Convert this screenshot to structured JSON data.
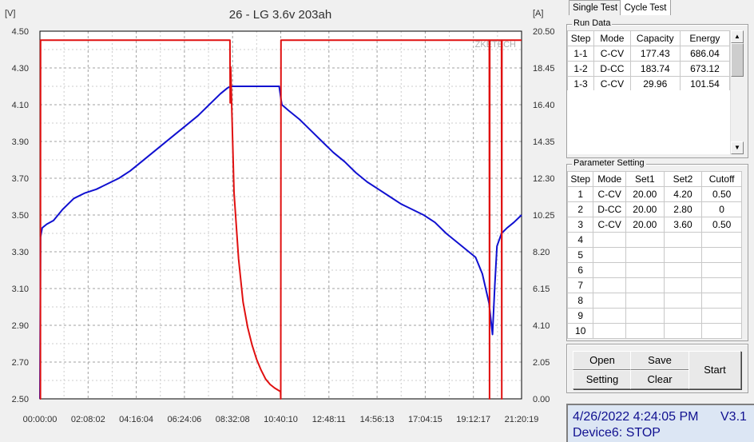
{
  "tabs": [
    "Single Test",
    "Cycle Test"
  ],
  "run_data": {
    "title": "Run Data",
    "headers": [
      "Step",
      "Mode",
      "Capacity",
      "Energy"
    ],
    "rows": [
      [
        "1-1",
        "C-CV",
        "177.43",
        "686.04"
      ],
      [
        "1-2",
        "D-CC",
        "183.74",
        "673.12"
      ],
      [
        "1-3",
        "C-CV",
        "29.96",
        "101.54"
      ]
    ]
  },
  "parameters": {
    "title": "Parameter Setting",
    "headers": [
      "Step",
      "Mode",
      "Set1",
      "Set2",
      "Cutoff"
    ],
    "rows": [
      [
        "1",
        "C-CV",
        "20.00",
        "4.20",
        "0.50"
      ],
      [
        "2",
        "D-CC",
        "20.00",
        "2.80",
        "0"
      ],
      [
        "3",
        "C-CV",
        "20.00",
        "3.60",
        "0.50"
      ],
      [
        "4",
        "",
        "",
        "",
        ""
      ],
      [
        "5",
        "",
        "",
        "",
        ""
      ],
      [
        "6",
        "",
        "",
        "",
        ""
      ],
      [
        "7",
        "",
        "",
        "",
        ""
      ],
      [
        "8",
        "",
        "",
        "",
        ""
      ],
      [
        "9",
        "",
        "",
        "",
        ""
      ],
      [
        "10",
        "",
        "",
        "",
        ""
      ]
    ]
  },
  "buttons": {
    "open": "Open",
    "save": "Save",
    "setting": "Setting",
    "clear": "Clear",
    "start": "Start"
  },
  "status": {
    "datetime": "4/26/2022 4:24:05 PM",
    "version": "V3.1",
    "device": "Device6: STOP"
  },
  "chart_data": {
    "type": "line",
    "title": "26 - LG 3.6v 203ah",
    "watermark": "ZKETECH",
    "y_left_unit": "[V]",
    "y_right_unit": "[A]",
    "y_left_ticks": [
      "4.50",
      "4.30",
      "4.10",
      "3.90",
      "3.70",
      "3.50",
      "3.30",
      "3.10",
      "2.90",
      "2.70",
      "2.50"
    ],
    "y_right_ticks": [
      "20.50",
      "18.45",
      "16.40",
      "14.35",
      "12.30",
      "10.25",
      "8.20",
      "6.15",
      "4.10",
      "2.05",
      "0.00"
    ],
    "x_ticks": [
      "00:00:00",
      "02:08:02",
      "04:16:04",
      "06:24:06",
      "08:32:08",
      "10:40:10",
      "12:48:11",
      "14:56:13",
      "17:04:15",
      "19:12:17",
      "21:20:19"
    ],
    "ylim_left": [
      2.5,
      4.5
    ],
    "ylim_right": [
      0,
      20.5
    ],
    "x_unit": "hours",
    "xlim": [
      0,
      21.339
    ],
    "grid": true,
    "colors": {
      "voltage": "#1010d0",
      "current": "#e01010"
    },
    "series": [
      {
        "axis": "left",
        "x": [
          0.0,
          0.03,
          0.1,
          0.3,
          0.6,
          1.0,
          1.5,
          2.0,
          2.5,
          3.0,
          3.5,
          4.0,
          4.5,
          5.0,
          5.5,
          6.0,
          6.5,
          7.0,
          7.5,
          8.0,
          8.3,
          8.45,
          8.5,
          9.0,
          9.5,
          10.0,
          10.6,
          10.68,
          10.72,
          11.0,
          11.5,
          12.0,
          12.5,
          13.0,
          13.5,
          14.0,
          14.5,
          15.0,
          15.5,
          16.0,
          16.5,
          17.0,
          17.5,
          18.0,
          18.5,
          19.0,
          19.3,
          19.6,
          19.9,
          20.05,
          20.15,
          20.25,
          20.45,
          20.7,
          21.0,
          21.339
        ],
        "y": [
          2.5,
          3.38,
          3.43,
          3.45,
          3.47,
          3.53,
          3.59,
          3.62,
          3.64,
          3.67,
          3.7,
          3.74,
          3.79,
          3.84,
          3.89,
          3.94,
          3.99,
          4.04,
          4.1,
          4.16,
          4.19,
          4.2,
          4.2,
          4.2,
          4.2,
          4.2,
          4.2,
          4.13,
          4.1,
          4.07,
          4.02,
          3.96,
          3.9,
          3.84,
          3.79,
          3.73,
          3.68,
          3.64,
          3.6,
          3.56,
          3.53,
          3.5,
          3.46,
          3.4,
          3.35,
          3.3,
          3.27,
          3.18,
          3.02,
          2.85,
          3.11,
          3.33,
          3.4,
          3.43,
          3.46,
          3.5
        ]
      },
      {
        "axis": "right",
        "x": [
          0.0,
          0.02,
          0.03,
          8.42,
          8.43,
          8.44,
          8.45,
          8.6,
          8.8,
          9.0,
          9.2,
          9.4,
          9.6,
          9.8,
          10.0,
          10.2,
          10.4,
          10.6,
          10.66,
          10.67,
          10.68,
          19.91,
          19.92,
          19.93,
          20.45,
          20.46,
          20.47,
          21.339
        ],
        "y": [
          0.0,
          0.0,
          20.0,
          20.0,
          16.5,
          18.5,
          18.5,
          11.5,
          7.8,
          5.4,
          4.0,
          3.0,
          2.2,
          1.6,
          1.1,
          0.8,
          0.6,
          0.45,
          0.4,
          0.0,
          20.0,
          20.0,
          0.0,
          20.0,
          20.0,
          0.0,
          20.0,
          20.0
        ]
      }
    ]
  }
}
